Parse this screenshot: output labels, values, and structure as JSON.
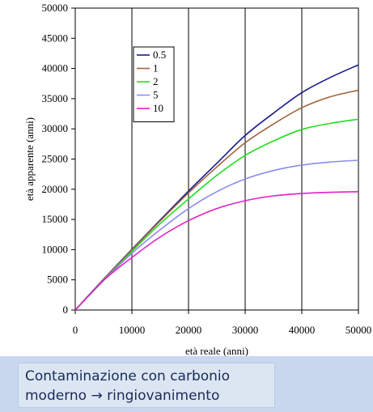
{
  "chart_data": {
    "type": "line",
    "xlabel": "età reale (anni)",
    "ylabel": "età apparente (anni)",
    "xlim": [
      0,
      50000
    ],
    "ylim": [
      0,
      50000
    ],
    "xticks": [
      0,
      10000,
      20000,
      30000,
      40000,
      50000
    ],
    "yticks": [
      0,
      5000,
      10000,
      15000,
      20000,
      25000,
      30000,
      35000,
      40000,
      45000,
      50000
    ],
    "grid": "vertical",
    "legend_position": "top-left",
    "x": [
      0,
      5000,
      10000,
      15000,
      20000,
      25000,
      30000,
      35000,
      40000,
      45000,
      50000
    ],
    "series": [
      {
        "name": "0.5",
        "color": "#1a1a8c",
        "values": [
          0,
          5100,
          10050,
          14900,
          19700,
          24300,
          28900,
          32600,
          36000,
          38500,
          40600
        ]
      },
      {
        "name": "1",
        "color": "#a0643c",
        "values": [
          0,
          5050,
          9950,
          14750,
          19400,
          23700,
          27700,
          30800,
          33500,
          35300,
          36400
        ]
      },
      {
        "name": "2",
        "color": "#22dd22",
        "values": [
          0,
          4900,
          9700,
          14300,
          18400,
          22300,
          25600,
          28000,
          29900,
          30900,
          31600
        ]
      },
      {
        "name": "5",
        "color": "#8c8cee",
        "values": [
          0,
          4900,
          9400,
          13300,
          16800,
          19600,
          21700,
          23100,
          24000,
          24500,
          24800
        ]
      },
      {
        "name": "10",
        "color": "#e020c8",
        "values": [
          0,
          4900,
          8700,
          12100,
          14800,
          16800,
          18100,
          18900,
          19300,
          19500,
          19600
        ]
      }
    ]
  },
  "caption": {
    "line1": "Contaminazione con carbonio",
    "line2": "moderno → ringiovanimento"
  }
}
